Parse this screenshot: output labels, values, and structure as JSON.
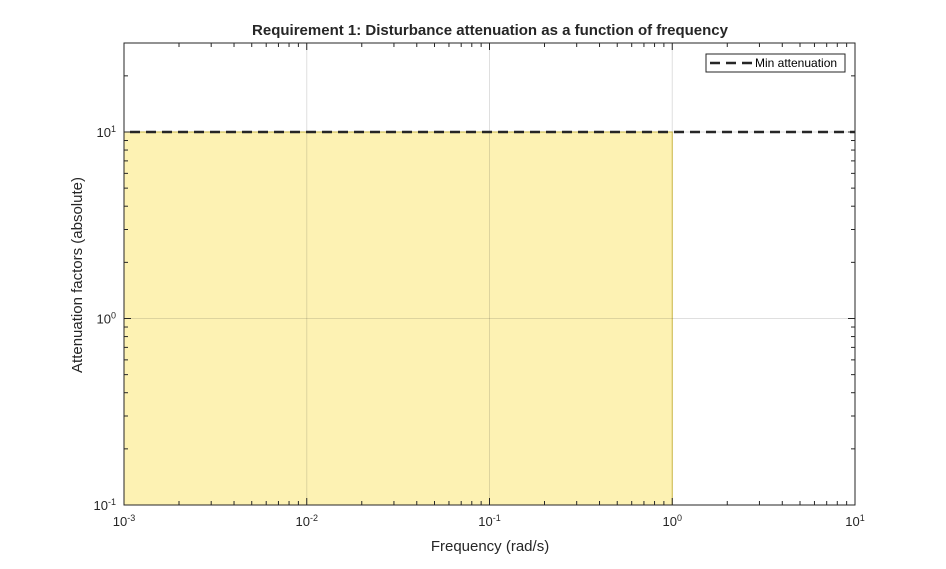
{
  "chart_data": {
    "type": "area",
    "title": "Requirement 1: Disturbance attenuation as a function of frequency",
    "xlabel": "Frequency (rad/s)",
    "ylabel": "Attenuation factors (absolute)",
    "xscale": "log",
    "yscale": "log",
    "xlim": [
      0.001,
      10
    ],
    "ylim": [
      0.1,
      30
    ],
    "xticks": [
      {
        "value": 0.001,
        "base": "10",
        "exp": "-3"
      },
      {
        "value": 0.01,
        "base": "10",
        "exp": "-2"
      },
      {
        "value": 0.1,
        "base": "10",
        "exp": "-1"
      },
      {
        "value": 1,
        "base": "10",
        "exp": "0"
      },
      {
        "value": 10,
        "base": "10",
        "exp": "1"
      }
    ],
    "yticks": [
      {
        "value": 0.1,
        "base": "10",
        "exp": "-1"
      },
      {
        "value": 1,
        "base": "10",
        "exp": "0"
      },
      {
        "value": 10,
        "base": "10",
        "exp": "1"
      }
    ],
    "grid": true,
    "legend_position": "top-right",
    "series": [
      {
        "name": "Min attenuation",
        "style": "dashed",
        "color": "#262626",
        "x": [
          0.001,
          10
        ],
        "y": [
          10,
          10
        ]
      }
    ],
    "shaded_region": {
      "x": [
        0.001,
        1
      ],
      "y": [
        0.1,
        10
      ],
      "fill": "#fdf2b3",
      "edge": "#e6cf4d"
    }
  }
}
